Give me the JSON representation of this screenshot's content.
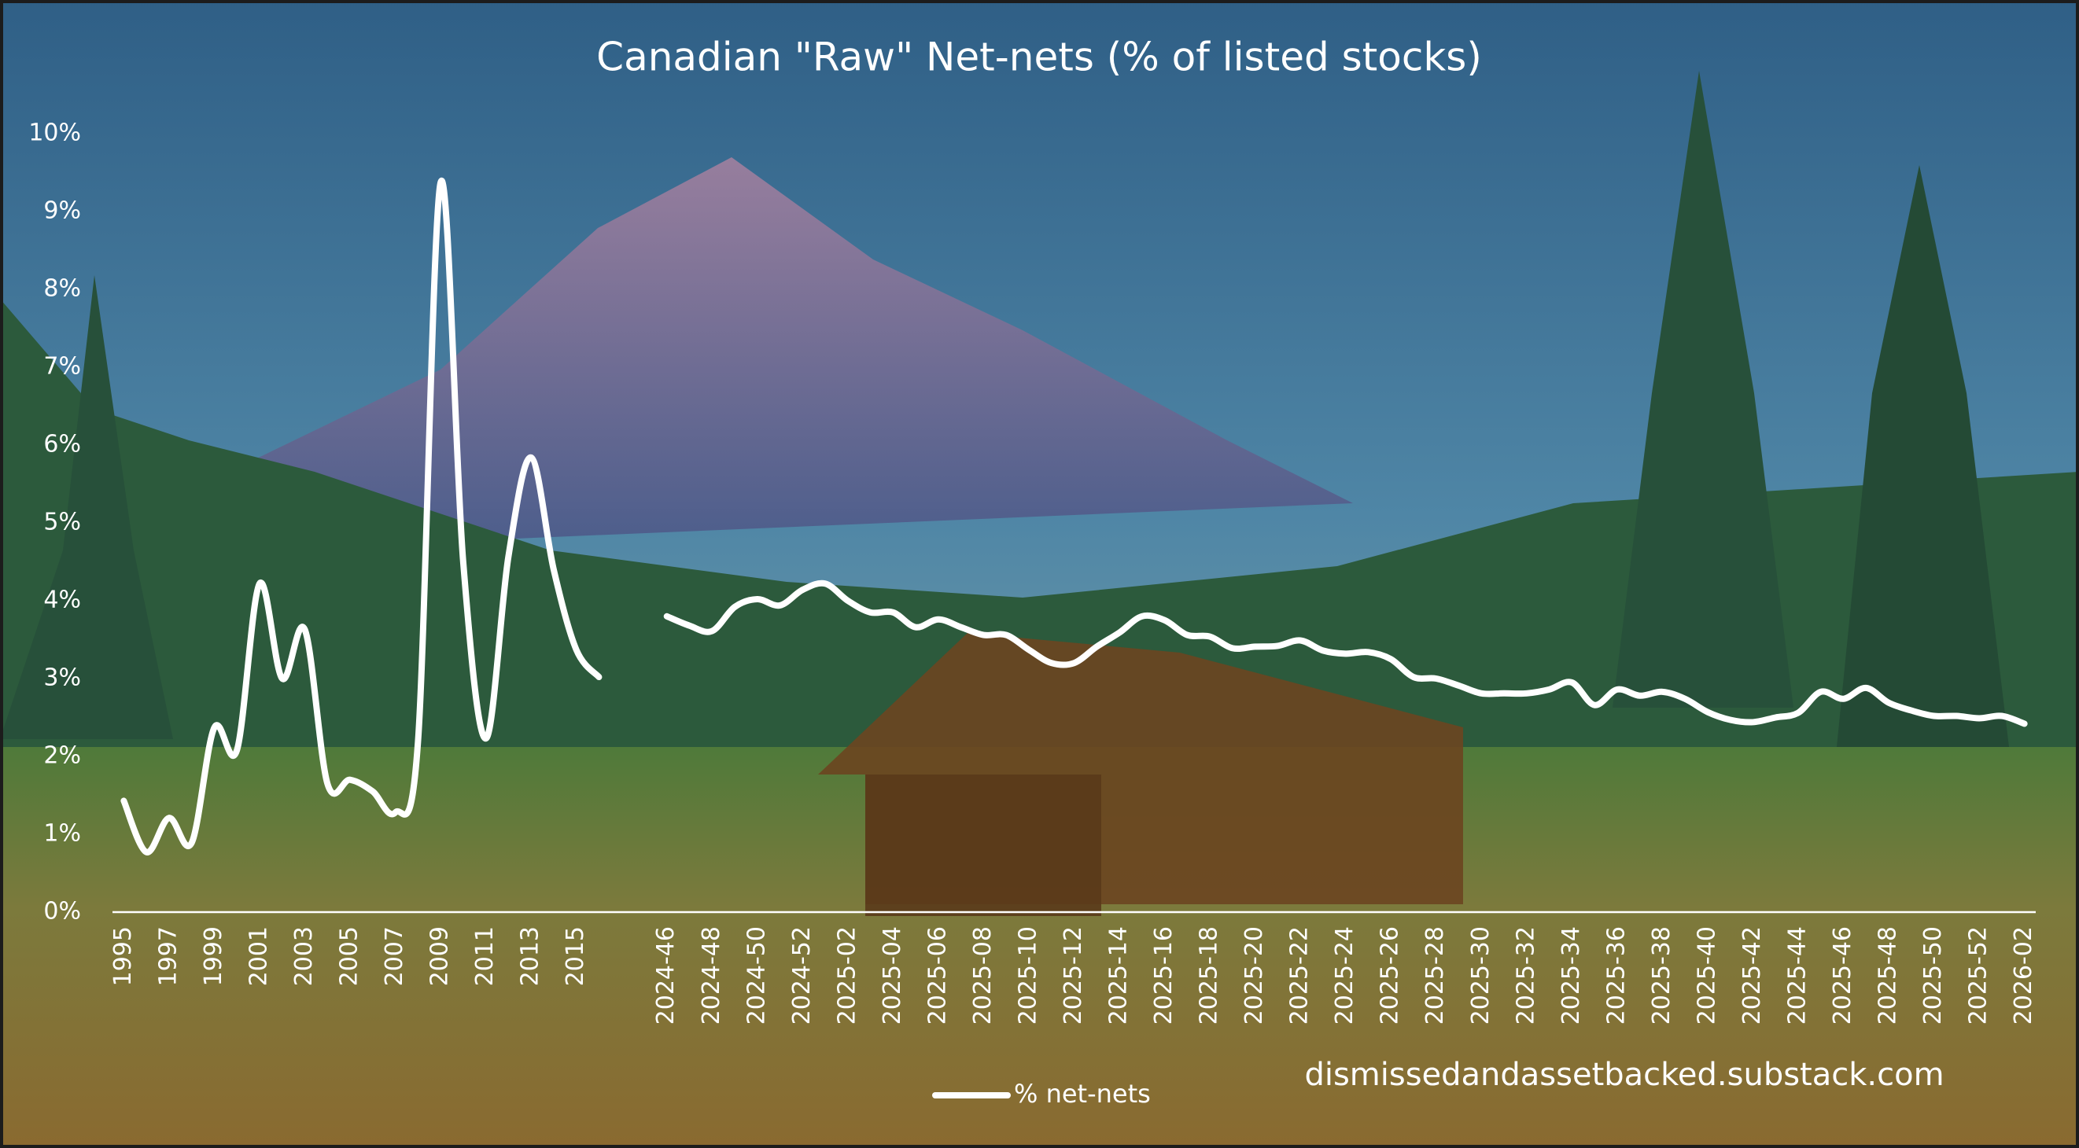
{
  "chart_data": {
    "type": "line",
    "title": "Canadian \"Raw\" Net-nets (% of listed stocks)",
    "annotation": "dismissedandassetbacked.substack.com",
    "legend": "bottom",
    "grid": false,
    "ylim": [
      0,
      10
    ],
    "yticks": [
      {
        "value": 0,
        "label": "0%"
      },
      {
        "value": 1,
        "label": "1%"
      },
      {
        "value": 2,
        "label": "2%"
      },
      {
        "value": 3,
        "label": "3%"
      },
      {
        "value": 4,
        "label": "4%"
      },
      {
        "value": 5,
        "label": "5%"
      },
      {
        "value": 6,
        "label": "6%"
      },
      {
        "value": 7,
        "label": "7%"
      },
      {
        "value": 8,
        "label": "8%"
      },
      {
        "value": 9,
        "label": "9%"
      },
      {
        "value": 10,
        "label": "10%"
      }
    ],
    "categories": [
      "1995",
      null,
      "1997",
      null,
      "1999",
      null,
      "2001",
      null,
      "2003",
      null,
      "2005",
      null,
      "2007",
      null,
      "2009",
      null,
      "2011",
      null,
      "2013",
      null,
      "2015",
      null,
      null,
      null,
      "2024-46",
      null,
      "2024-48",
      null,
      "2024-50",
      null,
      "2024-52",
      null,
      "2025-02",
      null,
      "2025-04",
      null,
      "2025-06",
      null,
      "2025-08",
      null,
      "2025-10",
      null,
      "2025-12",
      null,
      "2025-14",
      null,
      "2025-16",
      null,
      "2025-18",
      null,
      "2025-20",
      null,
      "2025-22",
      null,
      "2025-24",
      null,
      "2025-26",
      null,
      "2025-28",
      null,
      "2025-30",
      null,
      "2025-32",
      null,
      "2025-34",
      null,
      "2025-36",
      null,
      "2025-38",
      null,
      "2025-40",
      null,
      "2025-42",
      null,
      "2025-44",
      null,
      "2025-46",
      null,
      "2025-48",
      null,
      "2025-50",
      null,
      "2025-52",
      null,
      "2026-02"
    ],
    "series": [
      {
        "name": "% net-nets",
        "color": "#ffffff",
        "values": [
          1.43,
          0.77,
          1.21,
          0.89,
          2.37,
          2.08,
          4.22,
          3.0,
          3.63,
          1.65,
          1.7,
          1.55,
          1.28,
          2.18,
          9.37,
          4.5,
          2.23,
          4.57,
          5.84,
          4.4,
          3.37,
          3.02,
          null,
          null,
          3.8,
          3.68,
          3.61,
          3.92,
          4.02,
          3.94,
          4.14,
          4.22,
          4.0,
          3.85,
          3.85,
          3.66,
          3.76,
          3.66,
          3.56,
          3.56,
          3.37,
          3.2,
          3.2,
          3.41,
          3.59,
          3.8,
          3.75,
          3.56,
          3.54,
          3.39,
          3.41,
          3.42,
          3.49,
          3.36,
          3.32,
          3.34,
          3.25,
          3.02,
          3.0,
          2.91,
          2.81,
          2.81,
          2.81,
          2.86,
          2.95,
          2.66,
          2.86,
          2.78,
          2.83,
          2.74,
          2.57,
          2.47,
          2.44,
          2.5,
          2.56,
          2.83,
          2.74,
          2.88,
          2.69,
          2.59,
          2.52,
          2.52,
          2.49,
          2.52,
          2.42
        ]
      }
    ]
  }
}
